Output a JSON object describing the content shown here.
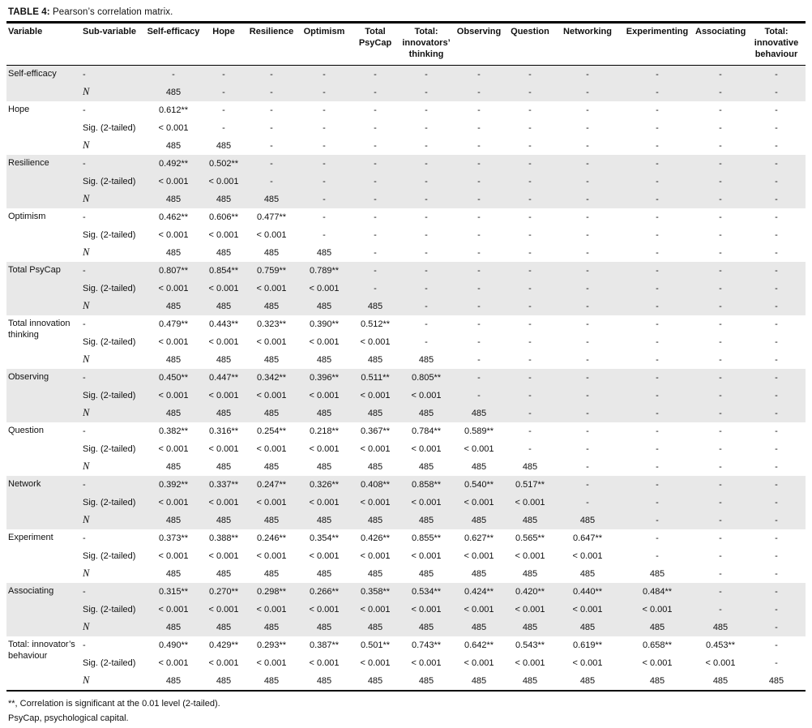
{
  "title": {
    "prefix": "TABLE 4:",
    "text": " Pearson’s correlation matrix."
  },
  "table": {
    "columns": [
      "Variable",
      "Sub-variable",
      "Self-efficacy",
      "Hope",
      "Resilience",
      "Optimism",
      "Total PsyCap",
      "Total: innovators’ thinking",
      "Observing",
      "Question",
      "Networking",
      "Experimenting",
      "Associating",
      "Total: innovative behaviour"
    ],
    "groups": [
      {
        "variable": "Self-efficacy",
        "shaded": true,
        "rows": [
          {
            "sub": "-",
            "cells": [
              "-",
              "-",
              "-",
              "-",
              "-",
              "-",
              "-",
              "-",
              "-",
              "-",
              "-",
              "-"
            ]
          },
          {
            "sub": "N",
            "cells": [
              "485",
              "-",
              "-",
              "-",
              "-",
              "-",
              "-",
              "-",
              "-",
              "-",
              "-",
              "-"
            ]
          }
        ]
      },
      {
        "variable": "Hope",
        "shaded": false,
        "rows": [
          {
            "sub": "-",
            "cells": [
              "0.612**",
              "-",
              "-",
              "-",
              "-",
              "-",
              "-",
              "-",
              "-",
              "-",
              "-",
              "-"
            ]
          },
          {
            "sub": "Sig. (2-tailed)",
            "cells": [
              "< 0.001",
              "-",
              "-",
              "-",
              "-",
              "-",
              "-",
              "-",
              "-",
              "-",
              "-",
              "-"
            ]
          },
          {
            "sub": "N",
            "cells": [
              "485",
              "485",
              "-",
              "-",
              "-",
              "-",
              "-",
              "-",
              "-",
              "-",
              "-",
              "-"
            ]
          }
        ]
      },
      {
        "variable": "Resilience",
        "shaded": true,
        "rows": [
          {
            "sub": "-",
            "cells": [
              "0.492**",
              "0.502**",
              "-",
              "-",
              "-",
              "-",
              "-",
              "-",
              "-",
              "-",
              "-",
              "-"
            ]
          },
          {
            "sub": "Sig. (2-tailed)",
            "cells": [
              "< 0.001",
              "< 0.001",
              "-",
              "-",
              "-",
              "-",
              "-",
              "-",
              "-",
              "-",
              "-",
              "-"
            ]
          },
          {
            "sub": "N",
            "cells": [
              "485",
              "485",
              "485",
              "-",
              "-",
              "-",
              "-",
              "-",
              "-",
              "-",
              "-",
              "-"
            ]
          }
        ]
      },
      {
        "variable": "Optimism",
        "shaded": false,
        "rows": [
          {
            "sub": "-",
            "cells": [
              "0.462**",
              "0.606**",
              "0.477**",
              "-",
              "-",
              "-",
              "-",
              "-",
              "-",
              "-",
              "-",
              "-"
            ]
          },
          {
            "sub": "Sig. (2-tailed)",
            "cells": [
              "< 0.001",
              "< 0.001",
              "< 0.001",
              "-",
              "-",
              "-",
              "-",
              "-",
              "-",
              "-",
              "-",
              "-"
            ]
          },
          {
            "sub": "N",
            "cells": [
              "485",
              "485",
              "485",
              "485",
              "-",
              "-",
              "-",
              "-",
              "-",
              "-",
              "-",
              "-"
            ]
          }
        ]
      },
      {
        "variable": "Total PsyCap",
        "shaded": true,
        "rows": [
          {
            "sub": "-",
            "cells": [
              "0.807**",
              "0.854**",
              "0.759**",
              "0.789**",
              "-",
              "-",
              "-",
              "-",
              "-",
              "-",
              "-",
              "-"
            ]
          },
          {
            "sub": "Sig. (2-tailed)",
            "cells": [
              "< 0.001",
              "< 0.001",
              "< 0.001",
              "< 0.001",
              "-",
              "-",
              "-",
              "-",
              "-",
              "-",
              "-",
              "-"
            ]
          },
          {
            "sub": "N",
            "cells": [
              "485",
              "485",
              "485",
              "485",
              "485",
              "-",
              "-",
              "-",
              "-",
              "-",
              "-",
              "-"
            ]
          }
        ]
      },
      {
        "variable": "Total innovation thinking",
        "shaded": false,
        "rows": [
          {
            "sub": "-",
            "cells": [
              "0.479**",
              "0.443**",
              "0.323**",
              "0.390**",
              "0.512**",
              "-",
              "-",
              "-",
              "-",
              "-",
              "-",
              "-"
            ]
          },
          {
            "sub": "Sig. (2-tailed)",
            "cells": [
              "< 0.001",
              "< 0.001",
              "< 0.001",
              "< 0.001",
              "< 0.001",
              "-",
              "-",
              "-",
              "-",
              "-",
              "-",
              "-"
            ]
          },
          {
            "sub": "N",
            "cells": [
              "485",
              "485",
              "485",
              "485",
              "485",
              "485",
              "-",
              "-",
              "-",
              "-",
              "-",
              "-"
            ]
          }
        ]
      },
      {
        "variable": "Observing",
        "shaded": true,
        "rows": [
          {
            "sub": "-",
            "cells": [
              "0.450**",
              "0.447**",
              "0.342**",
              "0.396**",
              "0.511**",
              "0.805**",
              "-",
              "-",
              "-",
              "-",
              "-",
              "-"
            ]
          },
          {
            "sub": "Sig. (2-tailed)",
            "cells": [
              "< 0.001",
              "< 0.001",
              "< 0.001",
              "< 0.001",
              "< 0.001",
              "< 0.001",
              "-",
              "-",
              "-",
              "-",
              "-",
              "-"
            ]
          },
          {
            "sub": "N",
            "cells": [
              "485",
              "485",
              "485",
              "485",
              "485",
              "485",
              "485",
              "-",
              "-",
              "-",
              "-",
              "-"
            ]
          }
        ]
      },
      {
        "variable": "Question",
        "shaded": false,
        "rows": [
          {
            "sub": "-",
            "cells": [
              "0.382**",
              "0.316**",
              "0.254**",
              "0.218**",
              "0.367**",
              "0.784**",
              "0.589**",
              "-",
              "-",
              "-",
              "-",
              "-"
            ]
          },
          {
            "sub": "Sig. (2-tailed)",
            "cells": [
              "< 0.001",
              "< 0.001",
              "< 0.001",
              "< 0.001",
              "< 0.001",
              "< 0.001",
              "< 0.001",
              "-",
              "-",
              "-",
              "-",
              "-"
            ]
          },
          {
            "sub": "N",
            "cells": [
              "485",
              "485",
              "485",
              "485",
              "485",
              "485",
              "485",
              "485",
              "-",
              "-",
              "-",
              "-"
            ]
          }
        ]
      },
      {
        "variable": "Network",
        "shaded": true,
        "rows": [
          {
            "sub": "-",
            "cells": [
              "0.392**",
              "0.337**",
              "0.247**",
              "0.326**",
              "0.408**",
              "0.858**",
              "0.540**",
              "0.517**",
              "-",
              "-",
              "-",
              "-"
            ]
          },
          {
            "sub": "Sig. (2-tailed)",
            "cells": [
              "< 0.001",
              "< 0.001",
              "< 0.001",
              "< 0.001",
              "< 0.001",
              "< 0.001",
              "< 0.001",
              "< 0.001",
              "-",
              "-",
              "-",
              "-"
            ]
          },
          {
            "sub": "N",
            "cells": [
              "485",
              "485",
              "485",
              "485",
              "485",
              "485",
              "485",
              "485",
              "485",
              "-",
              "-",
              "-"
            ]
          }
        ]
      },
      {
        "variable": "Experiment",
        "shaded": false,
        "rows": [
          {
            "sub": "-",
            "cells": [
              "0.373**",
              "0.388**",
              "0.246**",
              "0.354**",
              "0.426**",
              "0.855**",
              "0.627**",
              "0.565**",
              "0.647**",
              "-",
              "-",
              "-"
            ]
          },
          {
            "sub": "Sig. (2-tailed)",
            "cells": [
              "< 0.001",
              "< 0.001",
              "< 0.001",
              "< 0.001",
              "< 0.001",
              "< 0.001",
              "< 0.001",
              "< 0.001",
              "< 0.001",
              "-",
              "-",
              "-"
            ]
          },
          {
            "sub": "N",
            "cells": [
              "485",
              "485",
              "485",
              "485",
              "485",
              "485",
              "485",
              "485",
              "485",
              "485",
              "-",
              "-"
            ]
          }
        ]
      },
      {
        "variable": "Associating",
        "shaded": true,
        "rows": [
          {
            "sub": "-",
            "cells": [
              "0.315**",
              "0.270**",
              "0.298**",
              "0.266**",
              "0.358**",
              "0.534**",
              "0.424**",
              "0.420**",
              "0.440**",
              "0.484**",
              "-",
              "-"
            ]
          },
          {
            "sub": "Sig. (2-tailed)",
            "cells": [
              "< 0.001",
              "< 0.001",
              "< 0.001",
              "< 0.001",
              "< 0.001",
              "< 0.001",
              "< 0.001",
              "< 0.001",
              "< 0.001",
              "< 0.001",
              "-",
              "-"
            ]
          },
          {
            "sub": "N",
            "cells": [
              "485",
              "485",
              "485",
              "485",
              "485",
              "485",
              "485",
              "485",
              "485",
              "485",
              "485",
              "-"
            ]
          }
        ]
      },
      {
        "variable": "Total: innovator’s behaviour",
        "shaded": false,
        "rows": [
          {
            "sub": "-",
            "cells": [
              "0.490**",
              "0.429**",
              "0.293**",
              "0.387**",
              "0.501**",
              "0.743**",
              "0.642**",
              "0.543**",
              "0.619**",
              "0.658**",
              "0.453**",
              "-"
            ]
          },
          {
            "sub": "Sig. (2-tailed)",
            "cells": [
              "< 0.001",
              "< 0.001",
              "< 0.001",
              "< 0.001",
              "< 0.001",
              "< 0.001",
              "< 0.001",
              "< 0.001",
              "< 0.001",
              "< 0.001",
              "< 0.001",
              "-"
            ]
          },
          {
            "sub": "N",
            "cells": [
              "485",
              "485",
              "485",
              "485",
              "485",
              "485",
              "485",
              "485",
              "485",
              "485",
              "485",
              "485"
            ]
          }
        ]
      }
    ]
  },
  "footnotes": [
    "**, Correlation is significant at the 0.01 level (2-tailed).",
    "PsyCap, psychological capital."
  ]
}
